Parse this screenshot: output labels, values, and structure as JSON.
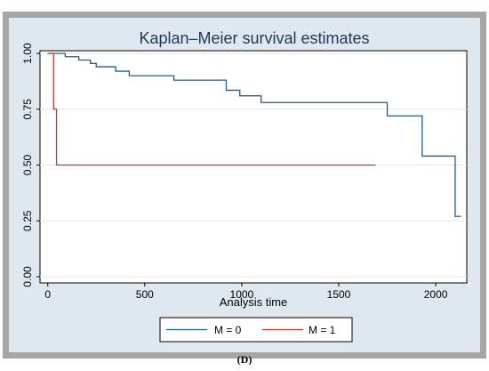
{
  "caption": "(D)",
  "chart_data": {
    "type": "line",
    "step": true,
    "title": "Kaplan–Meier survival estimates",
    "xlabel": "Analysis time",
    "ylabel": "",
    "xlim": [
      -40,
      2160
    ],
    "ylim": [
      0,
      1.0
    ],
    "x_ticks": [
      0,
      500,
      1000,
      1500,
      2000
    ],
    "x_tick_labels": [
      "0",
      "500",
      "1000",
      "1500",
      "2000"
    ],
    "y_ticks": [
      0,
      0.25,
      0.5,
      0.75,
      1.0
    ],
    "y_tick_labels": [
      "0.00",
      "0.25",
      "0.50",
      "0.75",
      "1.00"
    ],
    "grid": true,
    "legend_position": "bottom",
    "colors": {
      "series1": "#1f5f8b",
      "series2": "#c0392b",
      "outer_frame": "#a6a6a6",
      "inner_bg": "#dfe7ef"
    },
    "series": [
      {
        "name": "M = 0",
        "color": "#1f5f8b",
        "points": [
          [
            0,
            1.0
          ],
          [
            90,
            0.985
          ],
          [
            160,
            0.97
          ],
          [
            220,
            0.955
          ],
          [
            250,
            0.94
          ],
          [
            350,
            0.92
          ],
          [
            420,
            0.9
          ],
          [
            650,
            0.88
          ],
          [
            920,
            0.835
          ],
          [
            990,
            0.81
          ],
          [
            1100,
            0.78
          ],
          [
            1750,
            0.72
          ],
          [
            1930,
            0.54
          ],
          [
            2100,
            0.27
          ],
          [
            2130,
            0.27
          ]
        ]
      },
      {
        "name": "M = 1",
        "color": "#c0392b",
        "points": [
          [
            0,
            1.0
          ],
          [
            30,
            0.75
          ],
          [
            45,
            0.5
          ],
          [
            1690,
            0.5
          ]
        ]
      }
    ]
  }
}
